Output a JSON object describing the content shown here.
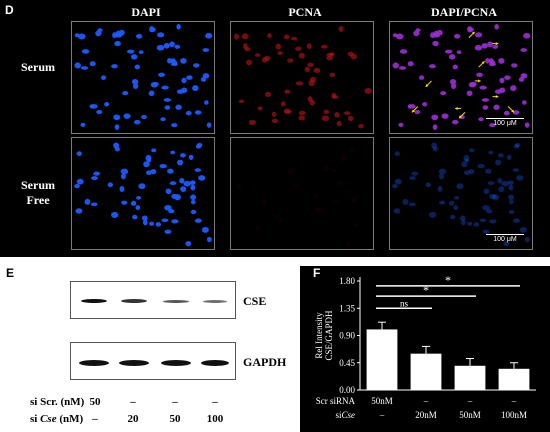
{
  "panel_d": {
    "letter": "D",
    "columns": [
      "DAPI",
      "PCNA",
      "DAPI/PCNA"
    ],
    "rows": [
      {
        "label_line1": "Serum",
        "label_line2": ""
      },
      {
        "label_line1": "Serum",
        "label_line2": "Free"
      }
    ],
    "scale_bar": "100 μM",
    "colors": {
      "dapi": "#1e5bff",
      "pcna": "#b0141b",
      "merge": "#9a2fd0",
      "arrow": "#ffe000"
    }
  },
  "panel_e": {
    "letter": "E",
    "blots": [
      {
        "label": "CSE"
      },
      {
        "label": "GAPDH"
      }
    ],
    "si_scr_label": "si Scr. (nM)",
    "si_cse_prefix": "si ",
    "si_cse_gene": "Cse",
    "si_cse_suffix": " (nM)",
    "si_scr_values": [
      "50",
      "–",
      "–",
      "–"
    ],
    "si_cse_values": [
      "–",
      "20",
      "50",
      "100"
    ]
  },
  "panel_f": {
    "letter": "F"
  },
  "chart_data": {
    "type": "bar",
    "ylabel_line1": "Rel Intensity",
    "ylabel_line2": "CSE/GAPDH",
    "yticks": [
      "0.00",
      "0.45",
      "0.90",
      "1.35",
      "1.80"
    ],
    "ylim": [
      0,
      1.8
    ],
    "categories": [
      "50nM",
      "20nM",
      "50nM",
      "100nM"
    ],
    "values": [
      1.0,
      0.6,
      0.4,
      0.35
    ],
    "errors": [
      0.12,
      0.12,
      0.12,
      0.1
    ],
    "row1_label": "Scr siRNA",
    "row1_values": [
      "50nM",
      "–",
      "–",
      "–"
    ],
    "row2_label_prefix": "si",
    "row2_label_gene": "Cse",
    "row2_values": [
      "–",
      "20nM",
      "50nM",
      "100nM"
    ],
    "significance": [
      {
        "from": 0,
        "to": 1,
        "label": "ns"
      },
      {
        "from": 0,
        "to": 2,
        "label": "*"
      },
      {
        "from": 0,
        "to": 3,
        "label": "*"
      }
    ],
    "bar_color": "#ffffff",
    "axis_color": "#ffffff"
  }
}
